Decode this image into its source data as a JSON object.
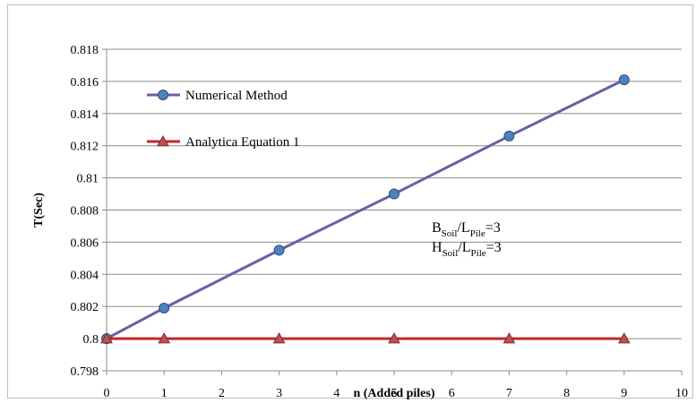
{
  "chart_data": {
    "type": "line",
    "xlabel": "n (Added piles)",
    "ylabel": "T(Sec)",
    "xlim": [
      0,
      10
    ],
    "ylim": [
      0.798,
      0.818
    ],
    "x_ticks": [
      "0",
      "1",
      "2",
      "3",
      "4",
      "5",
      "6",
      "7",
      "8",
      "9",
      "10"
    ],
    "y_ticks": [
      "0.798",
      "0.8",
      "0.802",
      "0.804",
      "0.806",
      "0.808",
      "0.81",
      "0.812",
      "0.814",
      "0.816",
      "0.818"
    ],
    "grid": "horizontal",
    "legend_position": "top-left",
    "series": [
      {
        "name": "Numerical Method",
        "color": "#6a5fa8",
        "marker": "circle",
        "marker_color": "#4f81bd",
        "x": [
          0,
          1,
          3,
          5,
          7,
          9
        ],
        "y": [
          0.8,
          0.8019,
          0.8055,
          0.809,
          0.8126,
          0.8161
        ]
      },
      {
        "name": "Analytica Equation 1",
        "color": "#c0282d",
        "marker": "triangle",
        "marker_color": "#c0504d",
        "x": [
          0,
          1,
          3,
          5,
          7,
          9
        ],
        "y": [
          0.8,
          0.8,
          0.8,
          0.8,
          0.8,
          0.8
        ]
      }
    ],
    "annotations": [
      {
        "main": "B",
        "sub1": "Soil",
        "mid": "/L",
        "sub2": "Pile",
        "tail": "=3"
      },
      {
        "main": "H",
        "sub1": "Soil",
        "mid": "/L",
        "sub2": "Pile",
        "tail": "=3"
      }
    ]
  }
}
